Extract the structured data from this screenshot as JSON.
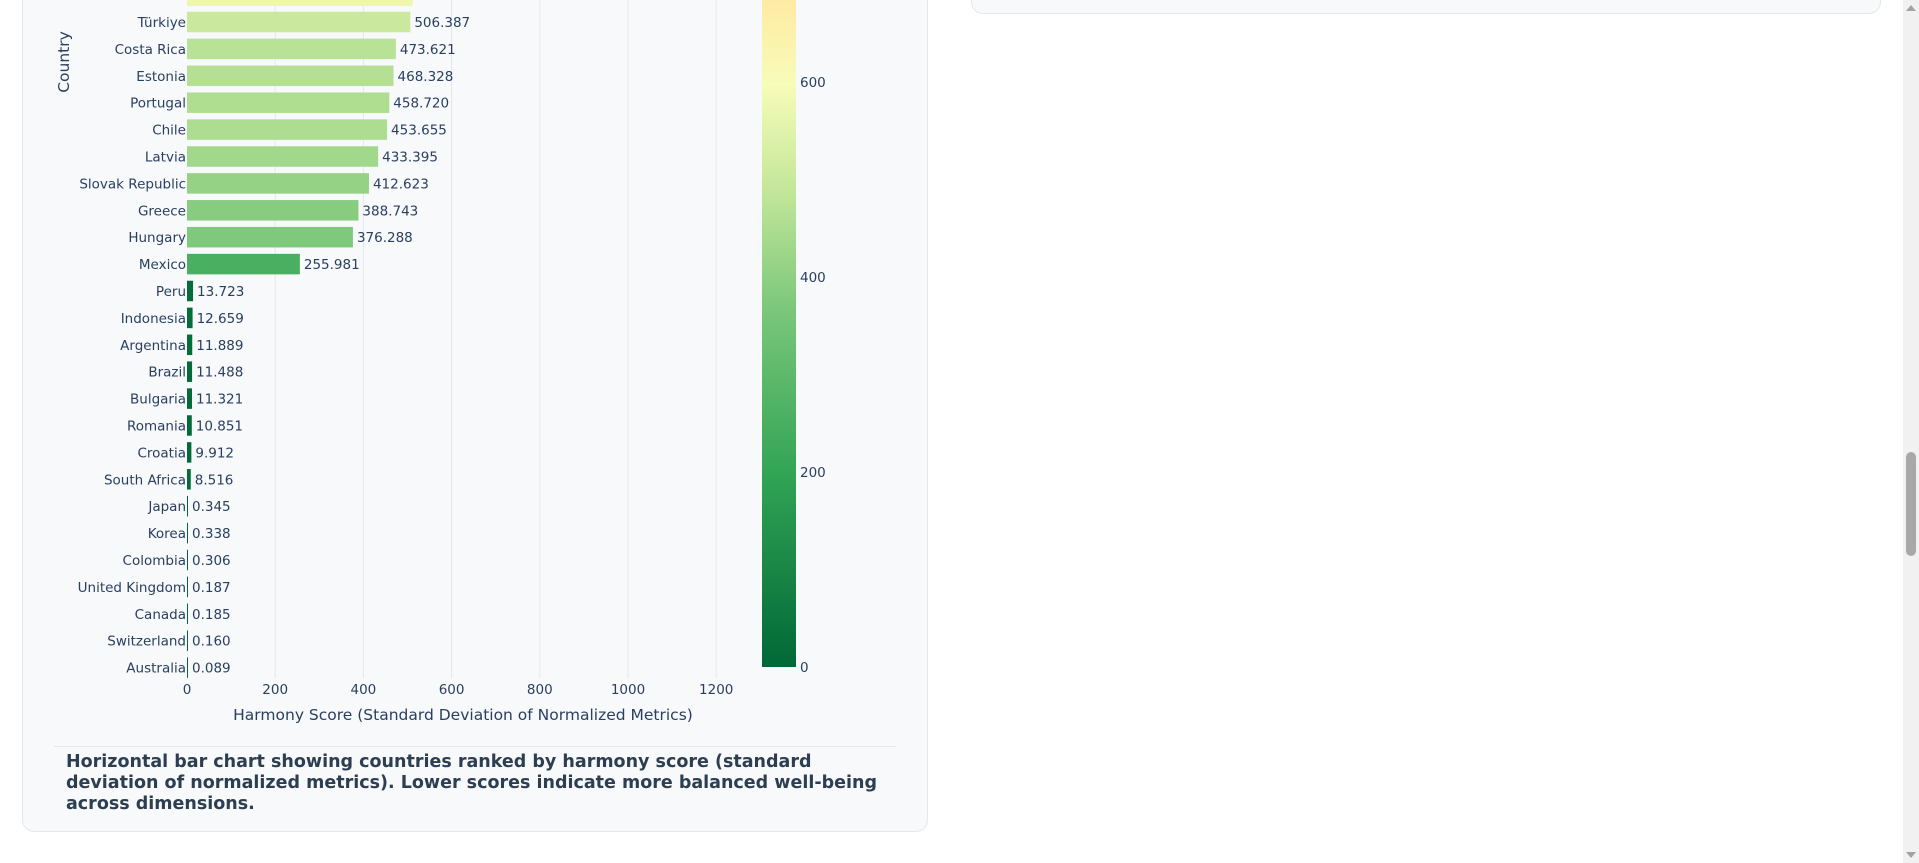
{
  "chart_data": {
    "type": "bar",
    "orientation": "horizontal",
    "xlabel": "Harmony Score (Standard Deviation of Normalized Metrics)",
    "ylabel": "Country",
    "xlim": [
      0,
      1300
    ],
    "xticks": [
      0,
      200,
      400,
      600,
      800,
      1000,
      1200
    ],
    "grid": true,
    "categories": [
      "Türkiye",
      "Costa Rica",
      "Estonia",
      "Portugal",
      "Chile",
      "Latvia",
      "Slovak Republic",
      "Greece",
      "Hungary",
      "Mexico",
      "Peru",
      "Indonesia",
      "Argentina",
      "Brazil",
      "Bulgaria",
      "Romania",
      "Croatia",
      "South Africa",
      "Japan",
      "Korea",
      "Colombia",
      "United Kingdom",
      "Canada",
      "Switzerland",
      "Australia"
    ],
    "values": [
      506.387,
      473.621,
      468.328,
      458.72,
      453.655,
      433.395,
      412.623,
      388.743,
      376.288,
      255.981,
      13.723,
      12.659,
      11.889,
      11.488,
      11.321,
      10.851,
      9.912,
      8.516,
      0.345,
      0.338,
      0.306,
      0.187,
      0.185,
      0.16,
      0.089
    ],
    "value_labels": [
      "506.387",
      "473.621",
      "468.328",
      "458.720",
      "453.655",
      "433.395",
      "412.623",
      "388.743",
      "376.288",
      "255.981",
      "13.723",
      "12.659",
      "11.889",
      "11.488",
      "11.321",
      "10.851",
      "9.912",
      "8.516",
      "0.345",
      "0.338",
      "0.306",
      "0.187",
      "0.185",
      "0.160",
      "0.089"
    ],
    "colorscale": {
      "name": "RdYlGn-green",
      "ticks": [
        0,
        200,
        400,
        600
      ],
      "stops": [
        "#006837",
        "#31a354",
        "#78c679",
        "#c2e699",
        "#f7fcb9",
        "#ffe8a0"
      ]
    }
  },
  "caption": "Horizontal bar chart showing countries ranked by harmony score (standard deviation of normalized metrics). Lower scores indicate more balanced well-being across dimensions."
}
